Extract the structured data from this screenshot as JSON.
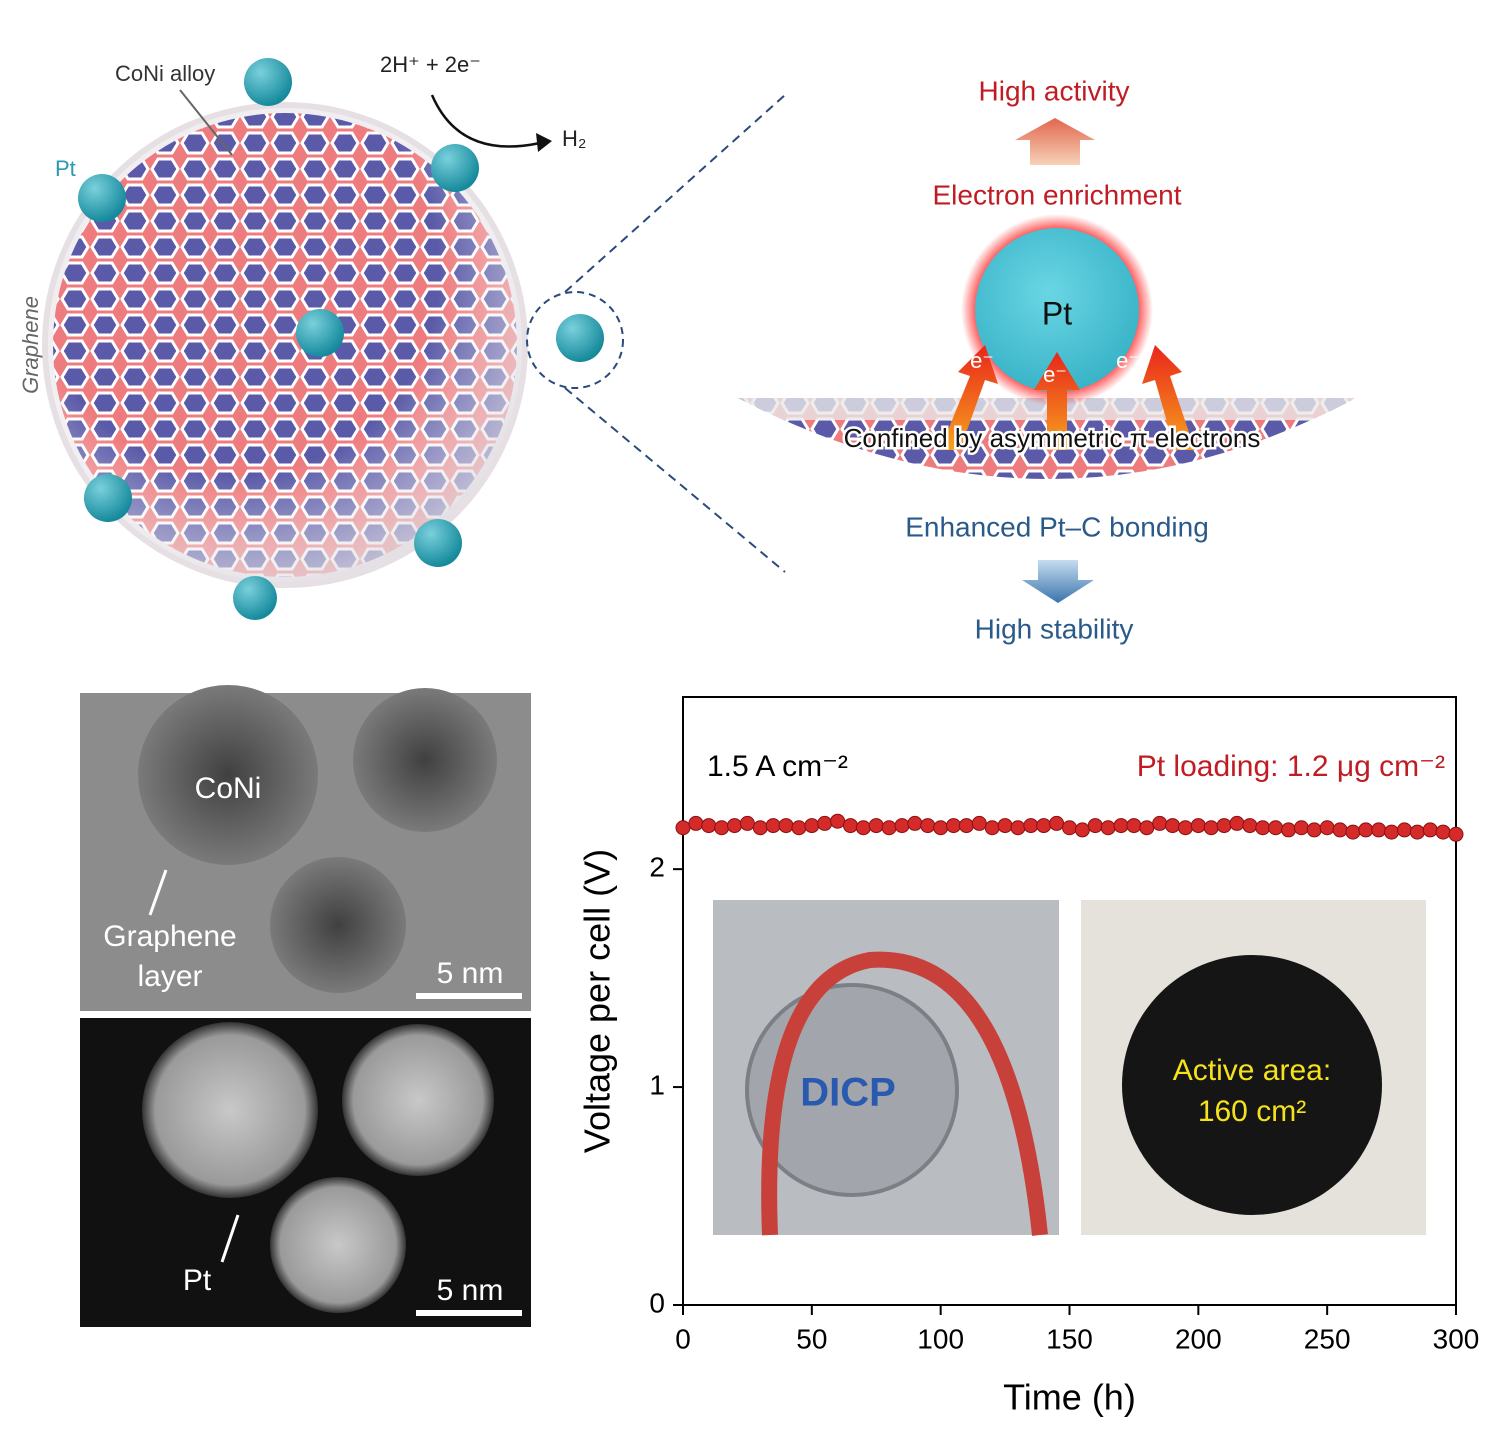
{
  "diagram": {
    "coni_label": "CoNi alloy",
    "pt_label": "Pt",
    "graphene_label": "Graphene",
    "reaction_in": "2H⁺ + 2e⁻",
    "reaction_out": "H₂",
    "high_activity": "High activity",
    "electron_enrichment": "Electron enrichment",
    "pt_center": "Pt",
    "electrons": [
      "e⁻",
      "e⁻",
      "e⁻"
    ],
    "confined": "Confined by asymmetric π electrons",
    "bonding": "Enhanced Pt–C bonding",
    "high_stability": "High stability"
  },
  "micrographs": {
    "top": {
      "particle_label": "CoNi",
      "graphene_label": [
        "Graphene",
        "layer"
      ],
      "scale": "5 nm"
    },
    "bottom": {
      "pt_label": "Pt",
      "scale": "5 nm"
    }
  },
  "chart_data": {
    "type": "scatter",
    "xlabel": "Time (h)",
    "ylabel": "Voltage per cell (V)",
    "annotations": [
      "1.5 A cm⁻²",
      "Pt loading: 1.2 μg cm⁻²"
    ],
    "photo_texts": [
      "DICP",
      "Active area:",
      "160 cm²"
    ],
    "xlim": [
      0,
      300
    ],
    "ylim": [
      0,
      2.79
    ],
    "xticks": [
      0,
      50,
      100,
      150,
      200,
      250,
      300
    ],
    "yticks": [
      0,
      1,
      2
    ],
    "series": [
      {
        "color": "#d42a2a",
        "x": [
          0,
          5,
          10,
          15,
          20,
          25,
          30,
          35,
          40,
          45,
          50,
          55,
          60,
          65,
          70,
          75,
          80,
          85,
          90,
          95,
          100,
          105,
          110,
          115,
          120,
          125,
          130,
          135,
          140,
          145,
          150,
          155,
          160,
          165,
          170,
          175,
          180,
          185,
          190,
          195,
          200,
          205,
          210,
          215,
          220,
          225,
          230,
          235,
          240,
          245,
          250,
          255,
          260,
          265,
          270,
          275,
          280,
          285,
          290,
          295,
          300
        ],
        "values": [
          2.19,
          2.21,
          2.2,
          2.19,
          2.2,
          2.21,
          2.19,
          2.2,
          2.2,
          2.19,
          2.2,
          2.21,
          2.22,
          2.2,
          2.19,
          2.2,
          2.19,
          2.2,
          2.21,
          2.2,
          2.19,
          2.2,
          2.2,
          2.21,
          2.19,
          2.2,
          2.19,
          2.2,
          2.2,
          2.21,
          2.19,
          2.18,
          2.2,
          2.19,
          2.2,
          2.2,
          2.19,
          2.21,
          2.2,
          2.19,
          2.2,
          2.19,
          2.2,
          2.21,
          2.2,
          2.19,
          2.19,
          2.18,
          2.19,
          2.18,
          2.19,
          2.18,
          2.17,
          2.18,
          2.18,
          2.17,
          2.18,
          2.17,
          2.18,
          2.17,
          2.16
        ]
      }
    ]
  }
}
